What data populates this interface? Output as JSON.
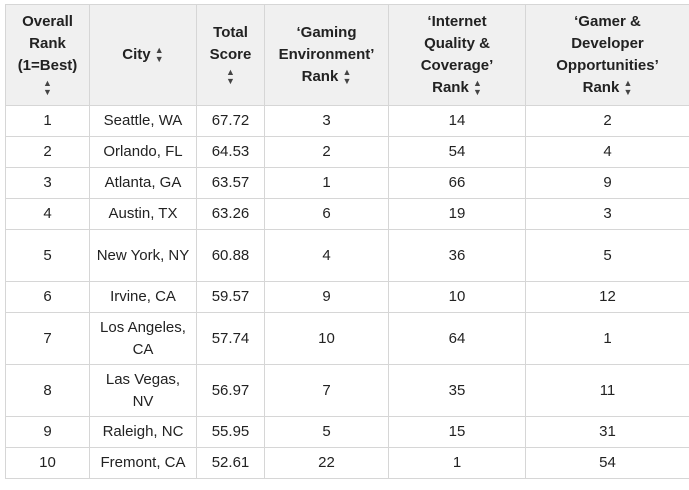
{
  "columns": [
    {
      "label": "Overall\nRank\n(1=Best)",
      "sort_icon": "sort-up-down-icon"
    },
    {
      "label": "City",
      "sort_icon": "sort-up-down-icon"
    },
    {
      "label": "Total\nScore",
      "sort_icon": "sort-up-down-icon"
    },
    {
      "label": "‘Gaming\nEnvironment’\nRank",
      "sort_icon": "sort-up-down-icon"
    },
    {
      "label": "‘Internet\nQuality &\nCoverage’\nRank",
      "sort_icon": "sort-up-down-icon"
    },
    {
      "label": "‘Gamer &\nDeveloper\nOpportunities’\nRank",
      "sort_icon": "sort-up-down-icon"
    }
  ],
  "rows": [
    {
      "rank": "1",
      "city": "Seattle, WA",
      "score": "67.72",
      "gaming": "3",
      "internet": "14",
      "opportunities": "2"
    },
    {
      "rank": "2",
      "city": "Orlando, FL",
      "score": "64.53",
      "gaming": "2",
      "internet": "54",
      "opportunities": "4"
    },
    {
      "rank": "3",
      "city": "Atlanta, GA",
      "score": "63.57",
      "gaming": "1",
      "internet": "66",
      "opportunities": "9"
    },
    {
      "rank": "4",
      "city": "Austin, TX",
      "score": "63.26",
      "gaming": "6",
      "internet": "19",
      "opportunities": "3"
    },
    {
      "rank": "5",
      "city": "New York, NY",
      "score": "60.88",
      "gaming": "4",
      "internet": "36",
      "opportunities": "5"
    },
    {
      "rank": "6",
      "city": "Irvine, CA",
      "score": "59.57",
      "gaming": "9",
      "internet": "10",
      "opportunities": "12"
    },
    {
      "rank": "7",
      "city": "Los Angeles, CA",
      "score": "57.74",
      "gaming": "10",
      "internet": "64",
      "opportunities": "1"
    },
    {
      "rank": "8",
      "city": "Las Vegas, NV",
      "score": "56.97",
      "gaming": "7",
      "internet": "35",
      "opportunities": "11"
    },
    {
      "rank": "9",
      "city": "Raleigh, NC",
      "score": "55.95",
      "gaming": "5",
      "internet": "15",
      "opportunities": "31"
    },
    {
      "rank": "10",
      "city": "Fremont, CA",
      "score": "52.61",
      "gaming": "22",
      "internet": "1",
      "opportunities": "54"
    }
  ]
}
